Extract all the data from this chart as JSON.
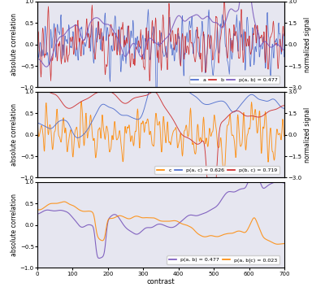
{
  "n": 700,
  "panel1": {
    "ylabel_left": "absolute correlation",
    "ylabel_right": "normalized signal",
    "ylim_left": [
      -1.0,
      1.0
    ],
    "ylim_right": [
      -3.0,
      3.0
    ],
    "yticks_left": [
      -1.0,
      -0.5,
      0.0,
      0.5,
      1.0
    ],
    "yticks_right": [
      -3.0,
      -1.5,
      0.0,
      1.5,
      3.0
    ],
    "colors": {
      "a": "#4466cc",
      "b": "#cc2222",
      "rho_ab": "#7755bb"
    },
    "legend": [
      "a",
      "b",
      "p(a, b) = 0.477"
    ],
    "bg_color": "#e6e6f0"
  },
  "panel2": {
    "ylabel_left": "absolute correlation",
    "ylabel_right": "normalized signal",
    "ylim_left": [
      -1.0,
      1.0
    ],
    "ylim_right": [
      -3.0,
      3.0
    ],
    "yticks_left": [
      -1.0,
      -0.5,
      0.0,
      0.5,
      1.0
    ],
    "yticks_right": [
      -3.0,
      -1.5,
      0.0,
      1.5,
      3.0
    ],
    "colors": {
      "c": "#ff8800",
      "rho_ac": "#4466cc",
      "rho_bc": "#cc2222"
    },
    "legend": [
      "c",
      "p(a, c) = 0.626",
      "p(b, c) = 0.719"
    ],
    "bg_color": "#e6e6f0"
  },
  "panel3": {
    "ylabel_left": "absolute correlation",
    "xlabel": "contrast",
    "ylim_left": [
      -1.0,
      1.0
    ],
    "yticks_left": [
      -1.0,
      -0.5,
      0.0,
      0.5,
      1.0
    ],
    "xticks": [
      0,
      100,
      200,
      300,
      400,
      500,
      600,
      700
    ],
    "colors": {
      "rho_ab": "#7755bb",
      "rho_ab_c": "#ff8800"
    },
    "legend": [
      "p(a, b) = 0.477",
      "p(a, b|c) = 0.023"
    ],
    "bg_color": "#e6e6f0"
  },
  "figsize": [
    4.0,
    3.64
  ],
  "dpi": 100
}
